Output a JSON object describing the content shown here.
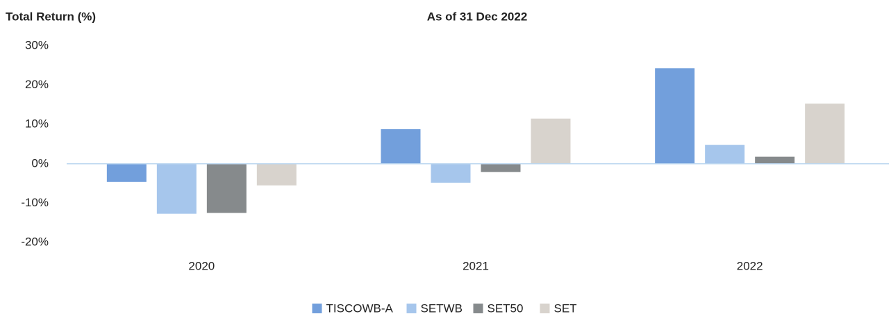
{
  "chart_data": {
    "type": "bar",
    "title": "Total Return (%)",
    "subtitle": "As of 31 Dec 2022",
    "categories": [
      "2020",
      "2021",
      "2022"
    ],
    "series": [
      {
        "name": "TISCOWB-A",
        "color": "#729fdc",
        "values": [
          -4.6,
          8.8,
          24.3
        ]
      },
      {
        "name": "SETWB",
        "color": "#a6c6ec",
        "values": [
          -12.7,
          -4.8,
          4.8
        ]
      },
      {
        "name": "SET50",
        "color": "#868a8c",
        "values": [
          -12.5,
          -2.1,
          1.8
        ]
      },
      {
        "name": "SET",
        "color": "#d8d3cd",
        "values": [
          -5.5,
          11.5,
          15.3
        ]
      }
    ],
    "ylim": [
      -20,
      30
    ],
    "yticks": [
      {
        "value": -20,
        "label": "-20%"
      },
      {
        "value": -10,
        "label": "-10%"
      },
      {
        "value": 0,
        "label": "0%"
      },
      {
        "value": 10,
        "label": "10%"
      },
      {
        "value": 20,
        "label": "20%"
      },
      {
        "value": 30,
        "label": "30%"
      }
    ],
    "grid": false,
    "legend": "bottom"
  }
}
